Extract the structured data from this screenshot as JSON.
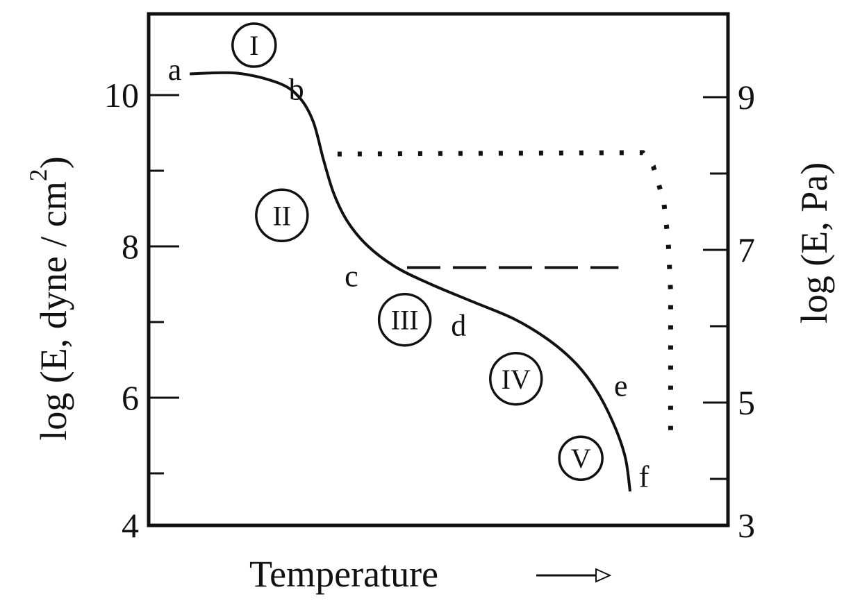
{
  "chart_data": {
    "type": "line",
    "xlabel": "Temperature",
    "ylabel_left": "log (E, dyne / cm",
    "ylabel_left_superscript": "2",
    "ylabel_left_close": ")",
    "ylabel_right": "log (E, Pa)",
    "x_arrow": "arrow-right",
    "xlim": [
      0,
      100
    ],
    "ylim_left": [
      4.3,
      11.1
    ],
    "ylim_right": [
      3.3,
      10.0
    ],
    "grid": false,
    "left_ticks": [
      {
        "value": 10,
        "label": "10"
      },
      {
        "value": 9,
        "label": ""
      },
      {
        "value": 8,
        "label": "8"
      },
      {
        "value": 7,
        "label": ""
      },
      {
        "value": 6,
        "label": "6"
      },
      {
        "value": 5,
        "label": ""
      },
      {
        "value": 4.3,
        "label": "4"
      }
    ],
    "right_ticks": [
      {
        "value": 9,
        "label": "9"
      },
      {
        "value": 8,
        "label": ""
      },
      {
        "value": 7,
        "label": "7"
      },
      {
        "value": 6,
        "label": ""
      },
      {
        "value": 5,
        "label": "5"
      },
      {
        "value": 4,
        "label": ""
      },
      {
        "value": 3.4,
        "label": "3"
      }
    ],
    "series": [
      {
        "style": "solid",
        "x": [
          7.1,
          15.2,
          22.4,
          26.0,
          28.4,
          30.2,
          32.0,
          34.4,
          37.9,
          42.8,
          48.7,
          55.9,
          63.1,
          69.1,
          73.9,
          77.5,
          80.5,
          82.3,
          83.1
        ],
        "y": [
          10.28,
          10.29,
          10.16,
          9.97,
          9.65,
          9.14,
          8.69,
          8.32,
          8.0,
          7.72,
          7.5,
          7.27,
          7.04,
          6.76,
          6.44,
          6.07,
          5.61,
          5.2,
          4.76
        ]
      },
      {
        "style": "dashed",
        "x": [
          44.6,
          81.1
        ],
        "y": [
          7.72,
          7.72
        ]
      },
      {
        "style": "dotted",
        "x": [
          32.6,
          85.3,
          87.1,
          88.9,
          89.7,
          90.1,
          90.1
        ],
        "y": [
          9.22,
          9.24,
          9.06,
          8.6,
          8.05,
          7.4,
          5.52
        ]
      }
    ],
    "point_labels": [
      {
        "text": "a",
        "x": 4.5,
        "y": 10.33
      },
      {
        "text": "b",
        "x": 25.5,
        "y": 10.07
      },
      {
        "text": "c",
        "x": 35.0,
        "y": 7.6
      },
      {
        "text": "d",
        "x": 53.5,
        "y": 6.95
      },
      {
        "text": "e",
        "x": 81.5,
        "y": 6.15
      },
      {
        "text": "f",
        "x": 85.5,
        "y": 4.95
      }
    ],
    "region_labels": [
      {
        "text": "I",
        "x": 18.2,
        "y": 10.66
      },
      {
        "text": "II",
        "x": 23.0,
        "y": 8.41
      },
      {
        "text": "III",
        "x": 44.2,
        "y": 7.03
      },
      {
        "text": "IV",
        "x": 63.4,
        "y": 6.25
      },
      {
        "text": "V",
        "x": 74.6,
        "y": 5.2
      }
    ]
  }
}
